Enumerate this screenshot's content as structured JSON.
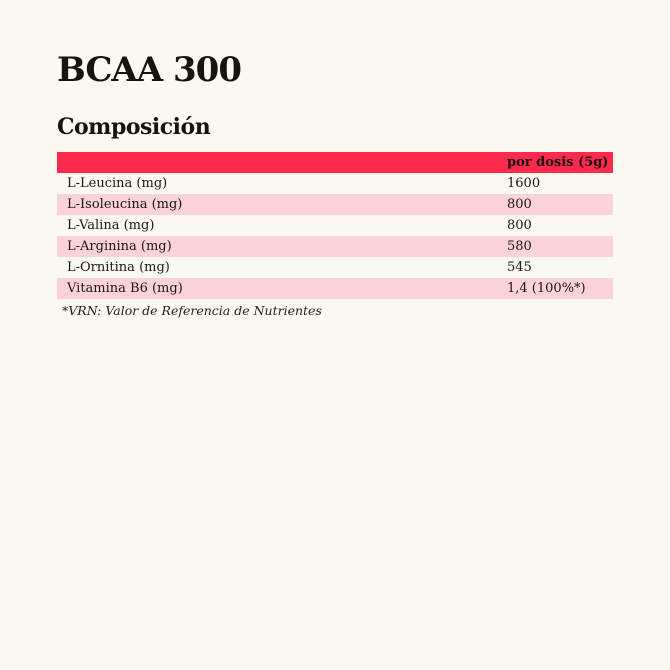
{
  "page": {
    "title": "BCAA 300",
    "section_heading": "Composición"
  },
  "table": {
    "header": {
      "value_col": "por dosis (5g)"
    },
    "rows": [
      {
        "label": "L-Leucina (mg)",
        "value": "1600"
      },
      {
        "label": "L-Isoleucina (mg)",
        "value": "800"
      },
      {
        "label": "L-Valina (mg)",
        "value": "800"
      },
      {
        "label": "L-Arginina (mg)",
        "value": "580"
      },
      {
        "label": "L-Ornitina (mg)",
        "value": "545"
      },
      {
        "label": "Vitamina B6 (mg)",
        "value": "1,4 (100%*)"
      }
    ],
    "footnote": "*VRN: Valor de Referencia de Nutrientes"
  },
  "colors": {
    "background": "#faf9f0",
    "header_red": "#fd2a4d",
    "row_pink": "#fad2d7",
    "text": "#17130f"
  }
}
